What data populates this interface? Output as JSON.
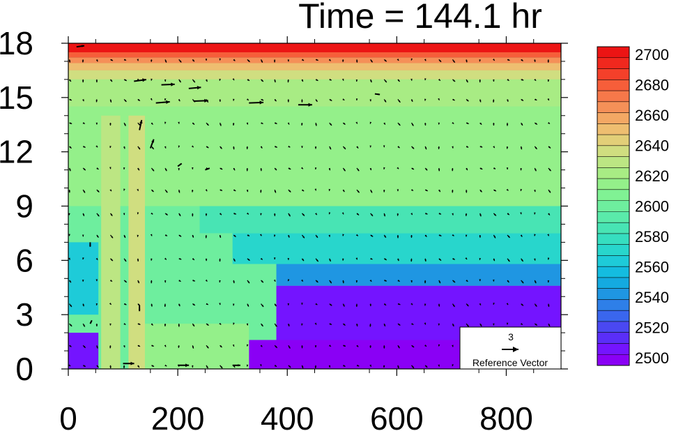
{
  "chart_data": {
    "type": "heatmap",
    "title": "Time = 144.1 hr",
    "xlabel": "",
    "ylabel": "",
    "xlim": [
      0,
      900
    ],
    "ylim": [
      0,
      18
    ],
    "x_ticks": [
      "0",
      "200",
      "400",
      "600",
      "800"
    ],
    "x_tick_values": [
      0,
      200,
      400,
      600,
      800
    ],
    "y_ticks": [
      "0",
      "3",
      "6",
      "9",
      "12",
      "15",
      "18"
    ],
    "y_tick_values": [
      0,
      3,
      6,
      9,
      12,
      15,
      18
    ],
    "colorbar": {
      "position": "right",
      "levels": [
        2495,
        2500,
        2505,
        2510,
        2515,
        2520,
        2525,
        2530,
        2535,
        2540,
        2545,
        2550,
        2555,
        2560,
        2565,
        2570,
        2575,
        2580,
        2585,
        2590,
        2595,
        2600,
        2605,
        2610,
        2615,
        2620,
        2625,
        2630,
        2635,
        2640,
        2645,
        2650,
        2655,
        2660,
        2665,
        2670,
        2675,
        2680,
        2685,
        2690,
        2695,
        2700,
        2705
      ],
      "labels": [
        "2500",
        "2520",
        "2540",
        "2560",
        "2580",
        "2600",
        "2620",
        "2640",
        "2660",
        "2680",
        "2700"
      ],
      "label_values": [
        2500,
        2520,
        2540,
        2560,
        2580,
        2600,
        2620,
        2640,
        2660,
        2680,
        2700
      ],
      "colors": [
        "#8a00f5",
        "#7414ff",
        "#5a2ef8",
        "#4a48f2",
        "#3a66ee",
        "#2e7fe8",
        "#1f96e2",
        "#14aae0",
        "#14bce0",
        "#1ecbd8",
        "#28d6cc",
        "#36dec0",
        "#48e4b4",
        "#5aeaaa",
        "#6eee9e",
        "#80f294",
        "#94f08a",
        "#a8ec84",
        "#bce683",
        "#d0de80",
        "#e2cf78",
        "#eebe70",
        "#f3a864",
        "#f59058",
        "#f6784a",
        "#f65e3a",
        "#f4402a",
        "#f0281e",
        "#ec1414"
      ]
    },
    "field_description_points": {
      "z_unit_values_at_height_km": [
        {
          "y": 0.5,
          "values_by_x": [
            [
              0,
              2505
            ],
            [
              60,
              2545
            ],
            [
              100,
              2620
            ],
            [
              200,
              2580
            ],
            [
              350,
              2500
            ],
            [
              600,
              2500
            ],
            [
              800,
              2505
            ]
          ]
        },
        {
          "y": 3,
          "values_by_x": [
            [
              0,
              2510
            ],
            [
              60,
              2560
            ],
            [
              100,
              2620
            ],
            [
              200,
              2575
            ],
            [
              400,
              2510
            ],
            [
              600,
              2505
            ],
            [
              800,
              2510
            ]
          ]
        },
        {
          "y": 6,
          "values_by_x": [
            [
              0,
              2565
            ],
            [
              100,
              2620
            ],
            [
              200,
              2575
            ],
            [
              400,
              2560
            ],
            [
              600,
              2550
            ],
            [
              800,
              2545
            ]
          ]
        },
        {
          "y": 9,
          "values_by_x": [
            [
              0,
              2590
            ],
            [
              100,
              2610
            ],
            [
              300,
              2590
            ],
            [
              600,
              2585
            ],
            [
              800,
              2580
            ]
          ]
        },
        {
          "y": 12,
          "values_by_x": [
            [
              0,
              2600
            ],
            [
              300,
              2600
            ],
            [
              800,
              2600
            ]
          ]
        },
        {
          "y": 15,
          "values_by_x": [
            [
              0,
              2615
            ],
            [
              300,
              2610
            ],
            [
              800,
              2610
            ]
          ]
        },
        {
          "y": 16.5,
          "values_by_x": [
            [
              0,
              2645
            ],
            [
              800,
              2640
            ]
          ]
        },
        {
          "y": 17.5,
          "values_by_x": [
            [
              0,
              2700
            ],
            [
              800,
              2700
            ]
          ]
        }
      ]
    },
    "vectors": {
      "grid_x": [
        0,
        25,
        50,
        75,
        100,
        125,
        150,
        175,
        200,
        225,
        250,
        275,
        300,
        325,
        350,
        375,
        400,
        425,
        450,
        475,
        500,
        525,
        550,
        575,
        600,
        625,
        650,
        675,
        700,
        725,
        750,
        775,
        800,
        825,
        850,
        875
      ],
      "grid_y": [
        0.2,
        1.3,
        2.5,
        3.6,
        4.9,
        6.1,
        7.4,
        8.6,
        9.9,
        11.1,
        12.3,
        13.6,
        14.9,
        16.0,
        17.1
      ],
      "strong_vectors": [
        {
          "x": 120,
          "y": 15.9,
          "u": 2.2,
          "v": 0.3
        },
        {
          "x": 170,
          "y": 15.7,
          "u": 2.4,
          "v": 0.1
        },
        {
          "x": 220,
          "y": 15.5,
          "u": 2.2,
          "v": 0.2
        },
        {
          "x": 160,
          "y": 14.7,
          "u": 2.5,
          "v": 0.2
        },
        {
          "x": 230,
          "y": 14.8,
          "u": 2.5,
          "v": 0.1
        },
        {
          "x": 330,
          "y": 14.7,
          "u": 2.6,
          "v": 0.1
        },
        {
          "x": 420,
          "y": 14.6,
          "u": 2.5,
          "v": 0.0
        },
        {
          "x": 15,
          "y": 17.8,
          "u": 1.4,
          "v": 0.2
        },
        {
          "x": 130,
          "y": 13.2,
          "u": 0.4,
          "v": 1.8
        },
        {
          "x": 150,
          "y": 12.2,
          "u": 0.6,
          "v": 1.6
        },
        {
          "x": 200,
          "y": 11.2,
          "u": 0.7,
          "v": 0.5
        },
        {
          "x": 250,
          "y": 11.0,
          "u": 0.8,
          "v": 0.3
        },
        {
          "x": 100,
          "y": 0.3,
          "u": 2.0,
          "v": 0.0
        },
        {
          "x": 200,
          "y": 0.2,
          "u": 2.0,
          "v": 0.0
        },
        {
          "x": 300,
          "y": 0.2,
          "u": 1.4,
          "v": 0.0
        },
        {
          "x": 560,
          "y": 15.2,
          "u": 0.9,
          "v": -0.1
        },
        {
          "x": 40,
          "y": 2.5,
          "u": 0.3,
          "v": 0.6
        },
        {
          "x": 130,
          "y": 3.5,
          "u": 0.0,
          "v": -1.0
        },
        {
          "x": 40,
          "y": 7.0,
          "u": 0.0,
          "v": -0.8
        }
      ]
    },
    "reference_vector": {
      "magnitude": "3",
      "label": "Reference Vector",
      "position": "bottom-right"
    }
  }
}
